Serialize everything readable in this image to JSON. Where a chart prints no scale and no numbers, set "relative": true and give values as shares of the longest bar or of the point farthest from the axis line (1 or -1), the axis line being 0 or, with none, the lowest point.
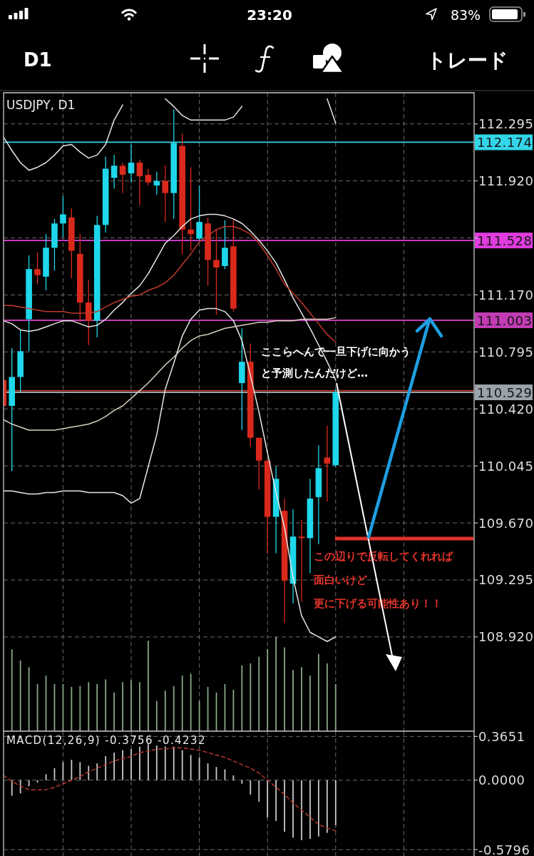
{
  "chart_data": [
    {
      "type": "other",
      "annotations": [
        "23:20",
        "83%",
        "D1",
        "トレード"
      ]
    },
    {
      "type": "candlestick",
      "title": "USDJPY, D1",
      "categories": [
        null,
        null,
        null,
        null,
        null,
        null,
        null,
        null,
        null,
        null,
        null,
        null,
        null,
        null,
        null,
        null,
        null,
        null,
        null,
        null,
        null,
        null,
        null,
        null,
        null,
        null,
        null,
        null,
        null,
        null,
        null,
        null,
        null,
        null,
        null,
        null,
        null,
        null,
        null,
        null
      ],
      "ohlc": [
        [
          110.61,
          110.61,
          110.44,
          110.44
        ],
        [
          110.44,
          110.82,
          110.01,
          110.63
        ],
        [
          110.63,
          110.94,
          110.53,
          110.8
        ],
        [
          111.01,
          111.43,
          110.8,
          111.34
        ],
        [
          111.34,
          111.45,
          111.24,
          111.3
        ],
        [
          111.29,
          111.57,
          111.2,
          111.48
        ],
        [
          111.48,
          111.67,
          111.33,
          111.64
        ],
        [
          111.64,
          111.82,
          111.55,
          111.7
        ],
        [
          111.68,
          111.74,
          111.28,
          111.46
        ],
        [
          111.44,
          111.57,
          110.99,
          111.12
        ],
        [
          111.12,
          111.27,
          110.84,
          111.0
        ],
        [
          111.0,
          111.69,
          110.89,
          111.63
        ],
        [
          111.63,
          112.08,
          111.58,
          112.0
        ],
        [
          111.94,
          112.09,
          111.87,
          112.02
        ],
        [
          112.02,
          112.04,
          111.84,
          111.96
        ],
        [
          111.97,
          112.16,
          111.91,
          112.04
        ],
        [
          112.04,
          112.06,
          111.76,
          111.95
        ],
        [
          111.96,
          112.0,
          111.89,
          111.91
        ],
        [
          111.89,
          111.98,
          111.83,
          111.92
        ],
        [
          111.92,
          112.02,
          111.65,
          111.84
        ],
        [
          111.84,
          112.39,
          111.67,
          112.17
        ],
        [
          112.15,
          112.23,
          111.44,
          111.6
        ],
        [
          111.6,
          112.01,
          111.46,
          111.57
        ],
        [
          111.54,
          111.89,
          111.53,
          111.65
        ],
        [
          111.64,
          111.68,
          111.23,
          111.4
        ],
        [
          111.4,
          111.6,
          111.04,
          111.35
        ],
        [
          111.36,
          111.66,
          111.34,
          111.48
        ],
        [
          111.49,
          111.67,
          111.06,
          111.08
        ],
        [
          110.59,
          110.95,
          110.28,
          110.73
        ],
        [
          110.73,
          110.85,
          110.17,
          110.23
        ],
        [
          110.23,
          110.23,
          109.89,
          110.08
        ],
        [
          110.08,
          110.08,
          109.47,
          109.71
        ],
        [
          109.71,
          110.04,
          109.47,
          109.96
        ],
        [
          109.75,
          109.83,
          109.01,
          109.29
        ],
        [
          109.27,
          109.76,
          109.14,
          109.58
        ],
        [
          109.58,
          109.69,
          109.15,
          109.57
        ],
        [
          109.57,
          109.96,
          109.34,
          109.83
        ],
        [
          109.84,
          110.18,
          109.53,
          110.03
        ],
        [
          110.1,
          110.31,
          109.81,
          110.06
        ],
        [
          110.05,
          110.55,
          110.04,
          110.529
        ]
      ],
      "colors": [
        "#d9291c",
        "#1fd7ea",
        "#1fd7ea",
        "#1fd7ea",
        "#d9291c",
        "#1fd7ea",
        "#1fd7ea",
        "#1fd7ea",
        "#d9291c",
        "#d9291c",
        "#d9291c",
        "#1fd7ea",
        "#1fd7ea",
        "#1fd7ea",
        "#d9291c",
        "#1fd7ea",
        "#d9291c",
        "#d9291c",
        "#1fd7ea",
        "#d9291c",
        "#1fd7ea",
        "#d9291c",
        "#d9291c",
        "#1fd7ea",
        "#d9291c",
        "#d9291c",
        "#1fd7ea",
        "#d9291c",
        "#1fd7ea",
        "#d9291c",
        "#d9291c",
        "#d9291c",
        "#1fd7ea",
        "#d9291c",
        "#1fd7ea",
        "#d9291c",
        "#1fd7ea",
        "#1fd7ea",
        "#d9291c",
        "#1fd7ea"
      ],
      "series": [
        {
          "type": "line",
          "color": "#e6e6e6",
          "values": [
            112.21,
            112.12,
            112.04,
            111.99,
            112.01,
            112.04,
            112.09,
            112.15,
            112.16,
            112.11,
            112.07,
            112.09,
            112.16,
            112.32,
            112.42,
            null,
            null,
            null,
            null,
            112.46,
            112.41,
            112.35,
            112.32,
            112.32,
            112.32,
            112.32,
            112.32,
            112.34,
            112.41,
            null,
            null,
            null,
            null,
            null,
            null,
            null,
            null,
            null,
            112.46,
            112.3
          ]
        },
        {
          "type": "line",
          "color": "#e6e6e6",
          "values": [
            111.0,
            110.98,
            110.94,
            110.93,
            110.94,
            110.96,
            110.98,
            111.0,
            111.0,
            110.98,
            110.96,
            110.97,
            111.01,
            111.07,
            111.12,
            111.18,
            111.23,
            111.31,
            111.41,
            111.51,
            111.56,
            111.62,
            111.67,
            111.69,
            111.7,
            111.7,
            111.69,
            111.67,
            111.64,
            111.59,
            111.53,
            111.46,
            111.38,
            111.27,
            111.15,
            111.05,
            110.95,
            110.84,
            110.73,
            110.61
          ]
        },
        {
          "type": "line",
          "color": "#e6e6e6",
          "values": [
            109.88,
            109.88,
            109.87,
            109.86,
            109.86,
            109.87,
            109.87,
            109.88,
            109.88,
            109.88,
            109.87,
            109.87,
            109.87,
            109.87,
            109.85,
            109.8,
            109.83,
            110.04,
            110.25,
            110.55,
            110.72,
            110.9,
            111.01,
            111.07,
            111.08,
            111.08,
            111.06,
            111.0,
            110.87,
            110.64,
            110.4,
            110.13,
            109.87,
            109.64,
            109.31,
            109.06,
            108.95,
            108.92,
            108.89,
            108.92
          ]
        },
        {
          "type": "line",
          "color": "#c0392b",
          "values": [
            111.1,
            111.1,
            111.09,
            111.08,
            111.07,
            111.06,
            111.06,
            111.06,
            111.05,
            111.05,
            111.05,
            111.06,
            111.09,
            111.12,
            111.14,
            111.16,
            111.17,
            111.2,
            111.22,
            111.25,
            111.3,
            111.37,
            111.44,
            111.52,
            111.56,
            111.6,
            111.62,
            111.62,
            111.6,
            111.57,
            111.51,
            111.43,
            111.34,
            111.24,
            111.18,
            111.12,
            111.05,
            110.98,
            110.91,
            110.86
          ]
        },
        {
          "type": "line",
          "color": "#d9cfbf",
          "values": [
            110.35,
            110.32,
            110.3,
            110.28,
            110.28,
            110.28,
            110.28,
            110.29,
            110.3,
            110.31,
            110.32,
            110.34,
            110.37,
            110.41,
            110.44,
            110.49,
            110.54,
            110.59,
            110.65,
            110.71,
            110.76,
            110.82,
            110.87,
            110.9,
            110.91,
            110.93,
            110.95,
            110.96,
            110.97,
            110.98,
            110.99,
            110.99,
            111.0,
            111.0,
            111.0,
            111.01,
            111.01,
            111.01,
            111.01,
            111.02
          ]
        }
      ],
      "ylim": [
        108.3,
        112.5
      ],
      "yticks": [
        112.295,
        {
          "value": 111.92,
          "label": "111.920"
        },
        {
          "value": 111.545,
          "label": null
        },
        {
          "value": 111.17,
          "label": "111.170"
        },
        110.795,
        {
          "value": 110.42,
          "label": "110.420"
        },
        110.045,
        {
          "value": 109.67,
          "label": "109.670"
        },
        109.295,
        {
          "value": 108.92,
          "label": "108.920"
        }
      ],
      "grid": true,
      "ref_lines": [
        {
          "axis": "y",
          "value": 112.174,
          "label": "112.174",
          "color": "#33d6e8"
        },
        {
          "axis": "y",
          "value": 111.528,
          "label": "111.528",
          "color": "#e03ce0"
        },
        {
          "axis": "y",
          "value": 111.003,
          "label": "111.003",
          "color": "#c23cb4"
        },
        {
          "axis": "y",
          "value": 110.54,
          "color": "#c0392b"
        },
        {
          "axis": "y",
          "value": 110.529,
          "label": "110.529",
          "color": "#9aa3ab"
        }
      ],
      "annotations": [
        "ここらへんで一旦下げに向かう",
        "と予測したんだけど…",
        "この辺りで反転してくれれば",
        "面白いけど",
        "更に下げる可能性あり！！"
      ]
    },
    {
      "type": "bar",
      "relative": true,
      "categories": [
        null,
        null,
        null,
        null,
        null,
        null,
        null,
        null,
        null,
        null,
        null,
        null,
        null,
        null,
        null,
        null,
        null,
        null,
        null,
        null,
        null,
        null,
        null,
        null,
        null,
        null,
        null,
        null,
        null,
        null,
        null,
        null,
        null,
        null,
        null,
        null,
        null,
        null,
        null,
        null
      ],
      "values": [
        null,
        0.87,
        0.75,
        0.68,
        0.5,
        0.59,
        0.5,
        0.5,
        0.47,
        0.48,
        0.52,
        0.5,
        0.55,
        0.41,
        0.52,
        0.54,
        0.52,
        0.96,
        0.32,
        0.43,
        0.48,
        0.59,
        0.61,
        0.32,
        0.47,
        0.41,
        0.5,
        0.44,
        0.7,
        0.72,
        0.79,
        0.87,
        1,
        0.89,
        0.65,
        0.68,
        0.59,
        0.82,
        0.72,
        0.5
      ],
      "color": "#86a886"
    },
    {
      "type": "bar",
      "title": "MACD(12,26,9) -0.3756 -0.4232",
      "categories": [
        null,
        null,
        null,
        null,
        null,
        null,
        null,
        null,
        null,
        null,
        null,
        null,
        null,
        null,
        null,
        null,
        null,
        null,
        null,
        null,
        null,
        null,
        null,
        null,
        null,
        null,
        null,
        null,
        null,
        null,
        null,
        null,
        null,
        null,
        null,
        null,
        null,
        null,
        null,
        null
      ],
      "series": [
        {
          "color": "#c8c8c8",
          "values": [
            null,
            -0.13,
            -0.11,
            -0.05,
            -0.02,
            0.05,
            0.1,
            0.15,
            0.17,
            0.15,
            0.12,
            0.14,
            0.2,
            0.23,
            0.25,
            0.26,
            0.28,
            0.3,
            0.29,
            0.28,
            0.28,
            0.25,
            0.21,
            0.19,
            0.14,
            0.11,
            0.09,
            0.04,
            -0.03,
            -0.12,
            -0.18,
            -0.31,
            -0.34,
            -0.43,
            -0.48,
            -0.5,
            -0.49,
            -0.47,
            -0.44,
            -0.3756
          ]
        },
        {
          "type": "line",
          "color": "#b5392c",
          "line_style": "dashed",
          "values": [
            0.04,
            -0.01,
            -0.05,
            -0.08,
            -0.08,
            -0.08,
            -0.06,
            -0.03,
            0.0,
            0.03,
            0.07,
            0.1,
            0.13,
            0.16,
            0.18,
            0.2,
            0.23,
            0.24,
            0.26,
            0.26,
            0.27,
            0.27,
            0.26,
            0.25,
            0.23,
            0.21,
            0.19,
            0.16,
            0.13,
            0.1,
            0.06,
            0.0,
            -0.06,
            -0.12,
            -0.19,
            -0.25,
            -0.31,
            -0.37,
            -0.4,
            -0.4232
          ]
        }
      ],
      "ylim": [
        -0.633,
        0.409
      ],
      "yticks": [
        -0.5796,
        {
          "value": 0,
          "label": "0.0000"
        },
        0.3651
      ],
      "grid": true
    }
  ]
}
